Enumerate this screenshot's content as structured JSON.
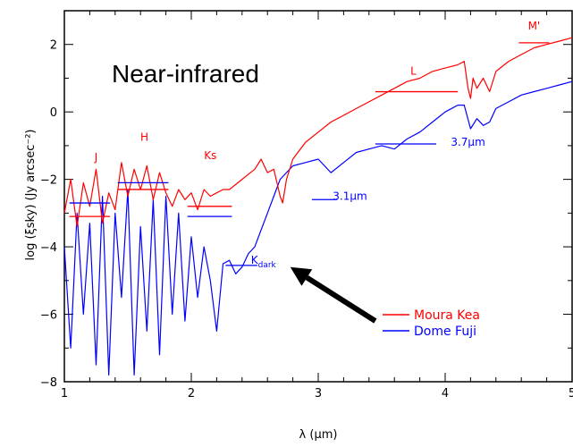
{
  "chart_data": {
    "type": "line",
    "title": "Near-infrared",
    "xlabel": "λ (μm)",
    "ylabel": "log (ξsky) (Jy arcsec⁻²)",
    "xlim": [
      1,
      5
    ],
    "ylim": [
      -8,
      3
    ],
    "x_ticks": [
      "1",
      "2",
      "3",
      "4",
      "5"
    ],
    "y_ticks": [
      "2",
      "0",
      "−2",
      "−4",
      "−6",
      "−8"
    ],
    "grid": false,
    "legend_position": "lower-right",
    "series": [
      {
        "name": "Moura Kea",
        "color": "#ff0000",
        "x": [
          1.0,
          1.05,
          1.1,
          1.15,
          1.2,
          1.25,
          1.3,
          1.35,
          1.4,
          1.45,
          1.5,
          1.55,
          1.6,
          1.65,
          1.7,
          1.75,
          1.8,
          1.85,
          1.9,
          1.95,
          2.0,
          2.05,
          2.1,
          2.15,
          2.2,
          2.25,
          2.3,
          2.4,
          2.5,
          2.55,
          2.6,
          2.65,
          2.7,
          2.72,
          2.75,
          2.8,
          2.9,
          3.0,
          3.1,
          3.2,
          3.3,
          3.4,
          3.5,
          3.6,
          3.7,
          3.8,
          3.9,
          4.0,
          4.1,
          4.15,
          4.18,
          4.2,
          4.22,
          4.25,
          4.3,
          4.35,
          4.4,
          4.5,
          4.6,
          4.7,
          4.8,
          4.9,
          5.0
        ],
        "y": [
          -3.0,
          -2.0,
          -3.4,
          -2.1,
          -2.8,
          -1.7,
          -3.3,
          -2.4,
          -2.9,
          -1.5,
          -2.5,
          -1.7,
          -2.3,
          -1.6,
          -2.6,
          -1.8,
          -2.4,
          -2.8,
          -2.3,
          -2.6,
          -2.4,
          -2.9,
          -2.3,
          -2.5,
          -2.4,
          -2.3,
          -2.3,
          -2.0,
          -1.7,
          -1.4,
          -1.8,
          -1.7,
          -2.5,
          -2.7,
          -2.0,
          -1.4,
          -0.9,
          -0.6,
          -0.3,
          -0.1,
          0.1,
          0.3,
          0.5,
          0.7,
          0.9,
          1.0,
          1.2,
          1.3,
          1.4,
          1.5,
          0.7,
          0.4,
          1.0,
          0.7,
          1.0,
          0.6,
          1.2,
          1.5,
          1.7,
          1.9,
          2.0,
          2.1,
          2.2
        ]
      },
      {
        "name": "Dome Fuji",
        "color": "#0000ff",
        "x": [
          1.0,
          1.05,
          1.1,
          1.15,
          1.2,
          1.25,
          1.3,
          1.35,
          1.4,
          1.45,
          1.5,
          1.55,
          1.6,
          1.65,
          1.7,
          1.75,
          1.8,
          1.85,
          1.9,
          1.95,
          2.0,
          2.05,
          2.1,
          2.15,
          2.2,
          2.25,
          2.3,
          2.35,
          2.4,
          2.45,
          2.5,
          2.55,
          2.6,
          2.65,
          2.7,
          2.8,
          2.9,
          3.0,
          3.1,
          3.2,
          3.3,
          3.4,
          3.5,
          3.6,
          3.7,
          3.8,
          3.9,
          4.0,
          4.1,
          4.15,
          4.2,
          4.25,
          4.3,
          4.35,
          4.4,
          4.5,
          4.6,
          4.7,
          4.8,
          4.9,
          5.0
        ],
        "y": [
          -4.0,
          -7.0,
          -3.0,
          -6.0,
          -3.3,
          -7.5,
          -2.5,
          -7.8,
          -3.0,
          -5.5,
          -2.3,
          -7.8,
          -3.4,
          -6.5,
          -2.6,
          -7.2,
          -2.5,
          -6.0,
          -3.0,
          -6.2,
          -3.7,
          -5.5,
          -4.0,
          -5.0,
          -6.5,
          -4.5,
          -4.4,
          -4.8,
          -4.6,
          -4.2,
          -4.0,
          -3.5,
          -3.0,
          -2.5,
          -2.0,
          -1.6,
          -1.5,
          -1.4,
          -1.8,
          -1.5,
          -1.2,
          -1.1,
          -1.0,
          -1.1,
          -0.8,
          -0.6,
          -0.3,
          0.0,
          0.2,
          0.2,
          -0.5,
          -0.2,
          -0.4,
          -0.3,
          0.1,
          0.3,
          0.5,
          0.6,
          0.7,
          0.8,
          0.9
        ]
      }
    ],
    "annotations": [
      {
        "text": "J",
        "color": "#ff0000",
        "x": 1.25,
        "y": -1.45
      },
      {
        "text": "H",
        "color": "#ff0000",
        "x": 1.63,
        "y": -0.85
      },
      {
        "text": "Ks",
        "color": "#ff0000",
        "x": 2.15,
        "y": -1.4
      },
      {
        "text": "L",
        "color": "#ff0000",
        "x": 3.75,
        "y": 1.1
      },
      {
        "text": "M'",
        "color": "#ff0000",
        "x": 4.7,
        "y": 2.45
      },
      {
        "text": "3.7μm",
        "color": "#0000ff",
        "x": 4.18,
        "y": -1.0
      },
      {
        "text": "3.1μm",
        "color": "#0000ff",
        "x": 3.25,
        "y": -2.6
      },
      {
        "text": "K",
        "sub": "dark",
        "color": "#0000ff",
        "x": 2.47,
        "y": -4.5
      }
    ],
    "band_marks": [
      {
        "color": "#ff0000",
        "x": [
          1.04,
          1.36
        ],
        "y": -3.1
      },
      {
        "color": "#ff0000",
        "x": [
          1.42,
          1.82
        ],
        "y": -2.3
      },
      {
        "color": "#ff0000",
        "x": [
          1.97,
          2.32
        ],
        "y": -2.8
      },
      {
        "color": "#ff0000",
        "x": [
          3.45,
          4.1
        ],
        "y": 0.6
      },
      {
        "color": "#ff0000",
        "x": [
          4.58,
          4.82
        ],
        "y": 2.05
      },
      {
        "color": "#0000ff",
        "x": [
          1.04,
          1.36
        ],
        "y": -2.7
      },
      {
        "color": "#0000ff",
        "x": [
          1.42,
          1.82
        ],
        "y": -2.1
      },
      {
        "color": "#0000ff",
        "x": [
          1.97,
          2.32
        ],
        "y": -3.1
      },
      {
        "color": "#0000ff",
        "x": [
          3.45,
          3.93
        ],
        "y": -0.95
      },
      {
        "color": "#0000ff",
        "x": [
          2.27,
          2.52
        ],
        "y": -4.55
      },
      {
        "color": "#0000ff",
        "x": [
          2.95,
          3.15
        ],
        "y": -2.6
      }
    ],
    "arrow": {
      "color": "#000000",
      "from": [
        3.45,
        -6.2
      ],
      "to": [
        2.78,
        -4.6
      ]
    }
  }
}
